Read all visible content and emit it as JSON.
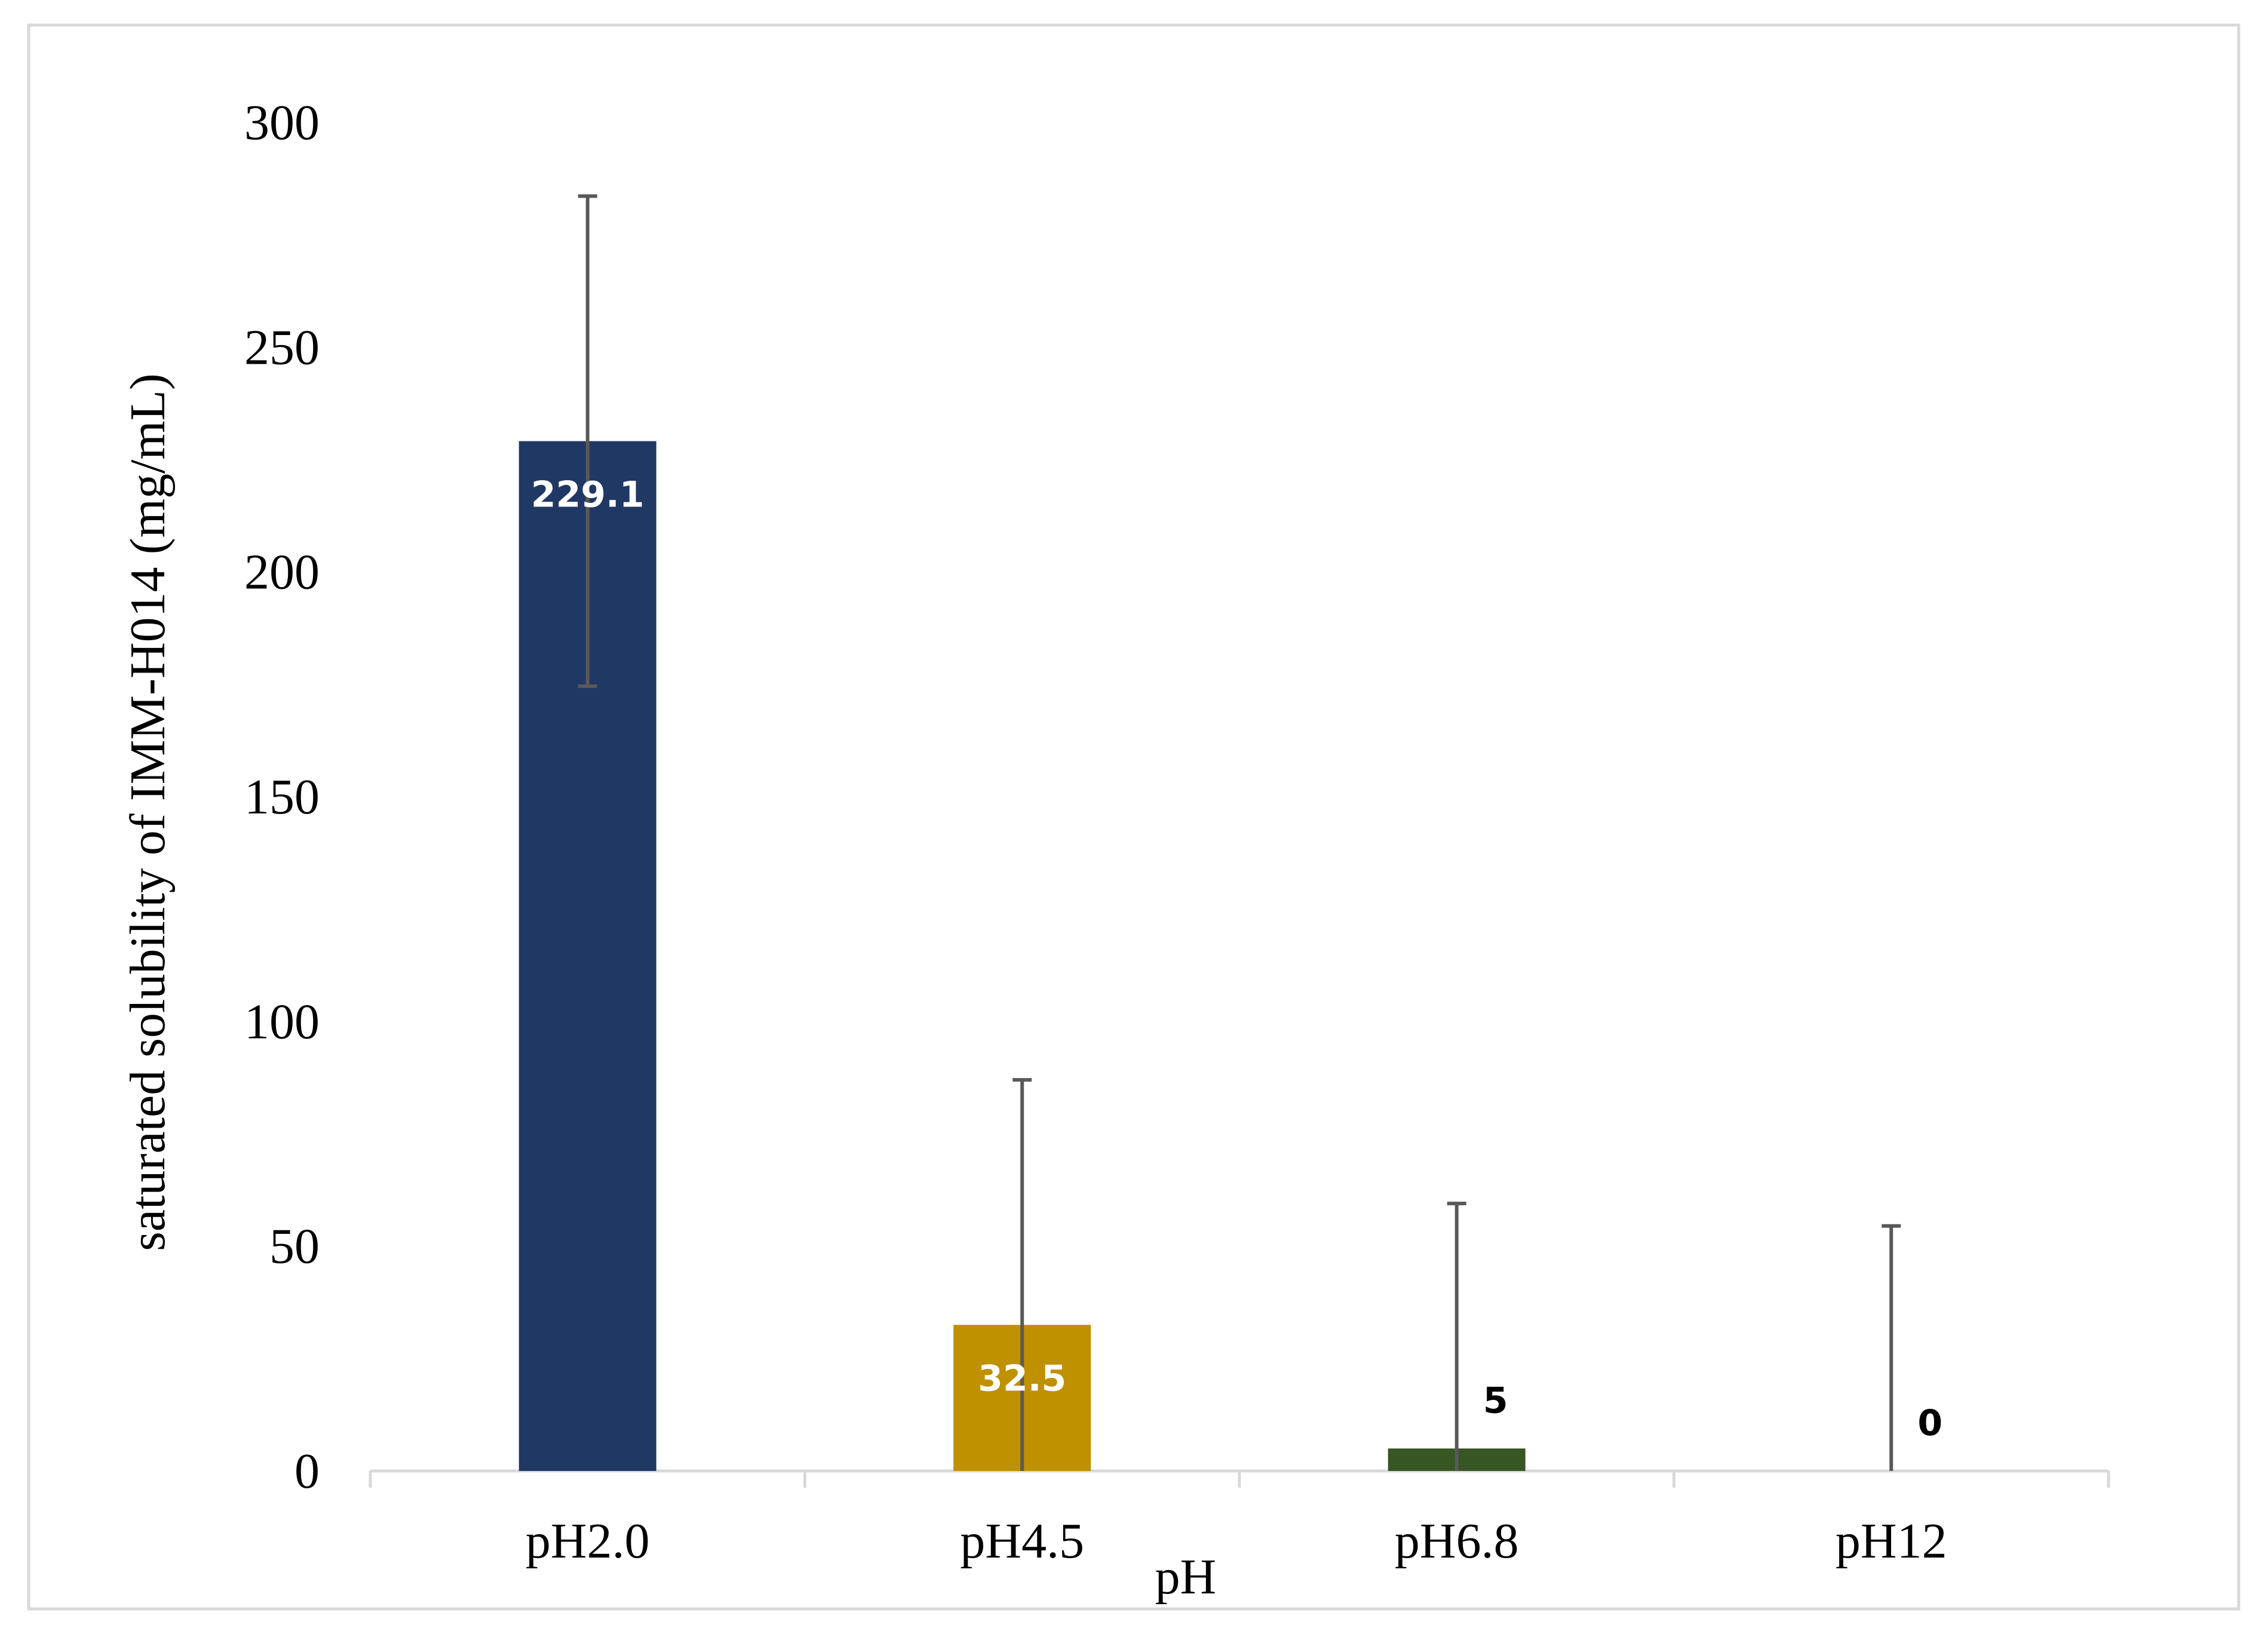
{
  "chart_data": {
    "type": "bar",
    "categories": [
      "pH2.0",
      "pH4.5",
      "pH6.8",
      "pH12"
    ],
    "values": [
      229.1,
      32.5,
      5,
      0
    ],
    "value_labels": [
      "229.1",
      "32.5",
      "5",
      "0"
    ],
    "error_plus": [
      54.5,
      54.5,
      54.5,
      54.5
    ],
    "error_minus": [
      54.5,
      32.5,
      5,
      0
    ],
    "bar_colors": [
      "#203864",
      "#bf9000",
      "#375623",
      "#375623"
    ],
    "label_colors": [
      "#ffffff",
      "#ffffff",
      "#000000",
      "#000000"
    ],
    "xlabel": "pH",
    "ylabel": "saturated solubility of  IMM-H014 (mg/mL)",
    "ylim": [
      0,
      300
    ],
    "yticks": [
      "0",
      "50",
      "100",
      "150",
      "200",
      "250",
      "300"
    ],
    "ytick_values": [
      0,
      50,
      100,
      150,
      200,
      250,
      300
    ],
    "grid": false,
    "legend": "none"
  }
}
